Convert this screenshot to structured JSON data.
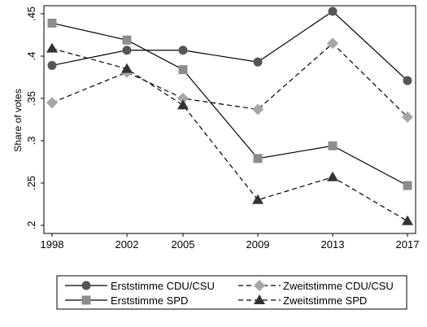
{
  "chart_data": {
    "type": "line",
    "xlabel": "",
    "ylabel": "Share of votes",
    "x": [
      1998,
      2002,
      2005,
      2009,
      2013,
      2017
    ],
    "x_tick_labels": [
      "1998",
      "2002",
      "2005",
      "2009",
      "2013",
      "2017"
    ],
    "y_ticks": [
      0.2,
      0.25,
      0.3,
      0.35,
      0.4,
      0.45
    ],
    "y_tick_labels": [
      ".2",
      ".25",
      ".3",
      ".35",
      ".4",
      ".45"
    ],
    "ylim": [
      0.2,
      0.45
    ],
    "grid": false,
    "legend_position": "bottom",
    "series": [
      {
        "name": "Erststimme CDU/CSU",
        "values": [
          0.389,
          0.407,
          0.407,
          0.393,
          0.453,
          0.371
        ],
        "marker": "circle",
        "line": "solid",
        "color": "#555555"
      },
      {
        "name": "Zweitstimme CDU/CSU",
        "values": [
          0.345,
          0.381,
          0.35,
          0.337,
          0.415,
          0.328
        ],
        "marker": "diamond",
        "line": "dashed",
        "color": "#a6a6a6"
      },
      {
        "name": "Erststimme SPD",
        "values": [
          0.439,
          0.419,
          0.384,
          0.279,
          0.294,
          0.247
        ],
        "marker": "square",
        "line": "solid",
        "color": "#8c8c8c"
      },
      {
        "name": "Zweitstimme SPD",
        "values": [
          0.409,
          0.385,
          0.342,
          0.23,
          0.257,
          0.205
        ],
        "marker": "triangle",
        "line": "dashed",
        "color": "#333333"
      }
    ]
  }
}
